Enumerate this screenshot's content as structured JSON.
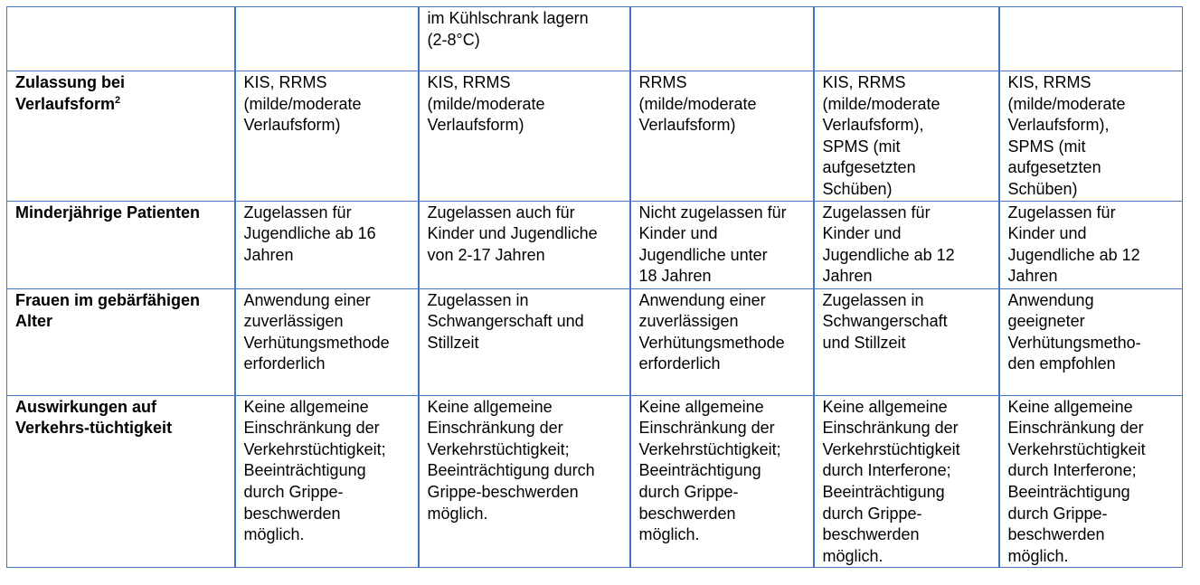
{
  "rows": [
    {
      "label": "",
      "cells": [
        "",
        "im Kühlschrank lagern\n(2-8°C)",
        "",
        "",
        ""
      ]
    },
    {
      "label": "Zulassung bei\nVerlaufsform",
      "label_sup": "2",
      "cells": [
        "KIS, RRMS\n(milde/moderate\nVerlaufsform)",
        "KIS, RRMS\n(milde/moderate\nVerlaufsform)",
        "RRMS\n(milde/moderate\nVerlaufsform)",
        "KIS, RRMS\n(milde/moderate\nVerlaufsform),\nSPMS (mit\naufgesetzten\nSchüben)",
        "KIS, RRMS\n(milde/moderate\nVerlaufsform),\nSPMS (mit\naufgesetzten\nSchüben)"
      ]
    },
    {
      "label": "Minderjährige Patienten",
      "cells": [
        "Zugelassen für\nJugendliche ab 16\nJahren",
        "Zugelassen auch für\nKinder und Jugendliche\nvon 2-17 Jahren",
        "Nicht zugelassen für\nKinder und\nJugendliche unter\n18 Jahren",
        "Zugelassen für\nKinder und\nJugendliche ab 12\nJahren",
        "Zugelassen für\nKinder und\nJugendliche ab 12\nJahren"
      ]
    },
    {
      "label": "Frauen im gebärfähigen\nAlter",
      "cells": [
        "Anwendung einer\nzuverlässigen\nVerhütungsmethode\nerforderlich",
        "Zugelassen in\nSchwangerschaft und\nStillzeit",
        "Anwendung einer\nzuverlässigen\nVerhütungsmethode\nerforderlich",
        "Zugelassen in\nSchwangerschaft\nund Stillzeit",
        "Anwendung\ngeeigneter\nVerhütungsmetho-\nden empfohlen"
      ]
    },
    {
      "label": "Auswirkungen auf\nVerkehrs-tüchtigkeit",
      "cells": [
        "Keine allgemeine\nEinschränkung der\nVerkehrstüchtigkeit;\nBeeinträchtigung\ndurch Grippe-\nbeschwerden\nmöglich.",
        "Keine allgemeine\nEinschränkung der\nVerkehrstüchtigkeit;\nBeeinträchtigung durch\nGrippe-beschwerden\nmöglich.",
        "Keine allgemeine\nEinschränkung der\nVerkehrstüchtigkeit;\nBeeinträchtigung\ndurch Grippe-\nbeschwerden\nmöglich.",
        "Keine allgemeine\nEinschränkung der\nVerkehrstüchtigkeit\ndurch Interferone;\nBeeinträchtigung\ndurch Grippe-\nbeschwerden\nmöglich.",
        "Keine allgemeine\nEinschränkung der\nVerkehrstüchtigkeit\ndurch Interferone;\nBeeinträchtigung\ndurch Grippe-\nbeschwerden\nmöglich."
      ]
    }
  ]
}
